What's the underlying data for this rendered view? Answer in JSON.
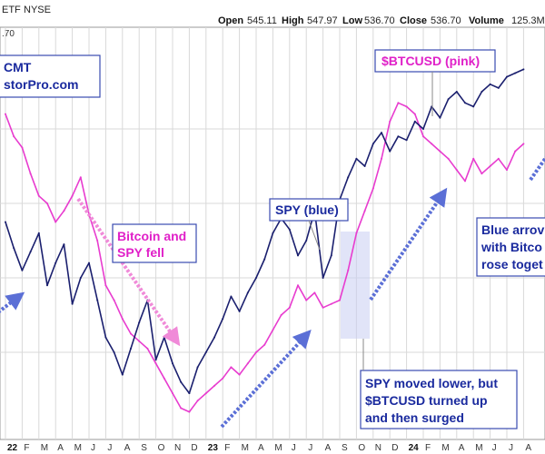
{
  "header": {
    "symbol_fragment": "ETF",
    "exchange": "NYSE",
    "open_label": "Open",
    "open_value": "545.11",
    "high_label": "High",
    "high_value": "547.97",
    "low_label": "Low",
    "low_value": "536.70",
    "close_label": "Close",
    "close_value": "536.70",
    "volume_label": "Volume",
    "volume_value": "125.3M"
  },
  "price_fragment": ".70",
  "annotations": {
    "credit_line1": "CMT",
    "credit_line2": "storPro.com",
    "btc_label": "$BTCUSD (pink)",
    "spy_label": "SPY (blue)",
    "fell_line1": "Bitcoin and",
    "fell_line2": "SPY fell",
    "blue_line1": "Blue arrov",
    "blue_line2": "with Bitco",
    "blue_line3": "rose toget",
    "spy_lower_line1": "SPY moved lower, but",
    "spy_lower_line2": "$BTCUSD turned up",
    "spy_lower_line3": "and then surged"
  },
  "colors": {
    "spy": "#1a1f6e",
    "btc": "#e83ccf",
    "arrow_blue": "#5b6fd6",
    "arrow_pink": "#f08ad8",
    "box_border": "#3a4bb0",
    "grid": "#d9d9d9",
    "highlight": "#c9cdf2"
  },
  "chart_data": {
    "type": "line",
    "title": "",
    "xlabel": "",
    "ylabel": "",
    "x_tick_labels": [
      "22",
      "F",
      "M",
      "A",
      "M",
      "J",
      "J",
      "A",
      "S",
      "O",
      "N",
      "D",
      "23",
      "F",
      "M",
      "A",
      "M",
      "J",
      "J",
      "A",
      "S",
      "O",
      "N",
      "D",
      "24",
      "F",
      "M",
      "A",
      "M",
      "J",
      "J",
      "A"
    ],
    "bold_ticks": [
      "22",
      "23",
      "24"
    ],
    "ylim": [
      0,
      100
    ],
    "series": [
      {
        "name": "SPY (blue)",
        "x": [
          0,
          0.5,
          1,
          1.5,
          2,
          2.5,
          3,
          3.5,
          4,
          4.5,
          5,
          5.5,
          6,
          6.5,
          7,
          7.5,
          8,
          8.5,
          9,
          9.5,
          10,
          10.5,
          11,
          11.5,
          12,
          12.5,
          13,
          13.5,
          14,
          14.5,
          15,
          15.5,
          16,
          16.5,
          17,
          17.5,
          18,
          18.5,
          19,
          19.5,
          20,
          20.5,
          21,
          21.5,
          22,
          22.5,
          23,
          23.5,
          24,
          24.5,
          25,
          25.5,
          26,
          26.5,
          27,
          27.5,
          28,
          28.5,
          29,
          29.5,
          30,
          30.5,
          31
        ],
        "values": [
          55,
          48,
          42,
          47,
          52,
          38,
          44,
          49,
          33,
          40,
          44,
          34,
          24,
          20,
          14,
          21,
          28,
          34,
          18,
          24,
          17,
          12,
          9,
          16,
          20,
          24,
          29,
          35,
          31,
          36,
          40,
          45,
          52,
          56,
          53,
          46,
          50,
          58,
          40,
          46,
          61,
          67,
          72,
          70,
          76,
          79,
          74,
          78,
          77,
          82,
          80,
          86,
          83,
          88,
          90,
          87,
          86,
          90,
          92,
          91,
          94,
          95,
          96
        ]
      },
      {
        "name": "$BTCUSD (pink)",
        "x": [
          0,
          0.5,
          1,
          1.5,
          2,
          2.5,
          3,
          3.5,
          4,
          4.5,
          5,
          5.5,
          6,
          6.5,
          7,
          7.5,
          8,
          8.5,
          9,
          9.5,
          10,
          10.5,
          11,
          11.5,
          12,
          12.5,
          13,
          13.5,
          14,
          14.5,
          15,
          15.5,
          16,
          16.5,
          17,
          17.5,
          18,
          18.5,
          19,
          19.5,
          20,
          20.5,
          21,
          21.5,
          22,
          22.5,
          23,
          23.5,
          24,
          24.5,
          25,
          25.5,
          26,
          26.5,
          27,
          27.5,
          28,
          28.5,
          29,
          29.5,
          30,
          30.5,
          31
        ],
        "values": [
          84,
          78,
          75,
          68,
          62,
          60,
          55,
          58,
          62,
          67,
          57,
          50,
          38,
          34,
          29,
          25,
          23,
          21,
          17,
          13,
          9,
          5,
          4,
          7,
          9,
          11,
          13,
          16,
          14,
          17,
          20,
          22,
          26,
          30,
          32,
          38,
          34,
          36,
          32,
          33,
          34,
          42,
          52,
          58,
          64,
          72,
          82,
          87,
          86,
          84,
          78,
          76,
          74,
          72,
          69,
          66,
          72,
          68,
          70,
          72,
          69,
          74,
          76
        ]
      }
    ],
    "grid": true,
    "legend": "none"
  }
}
